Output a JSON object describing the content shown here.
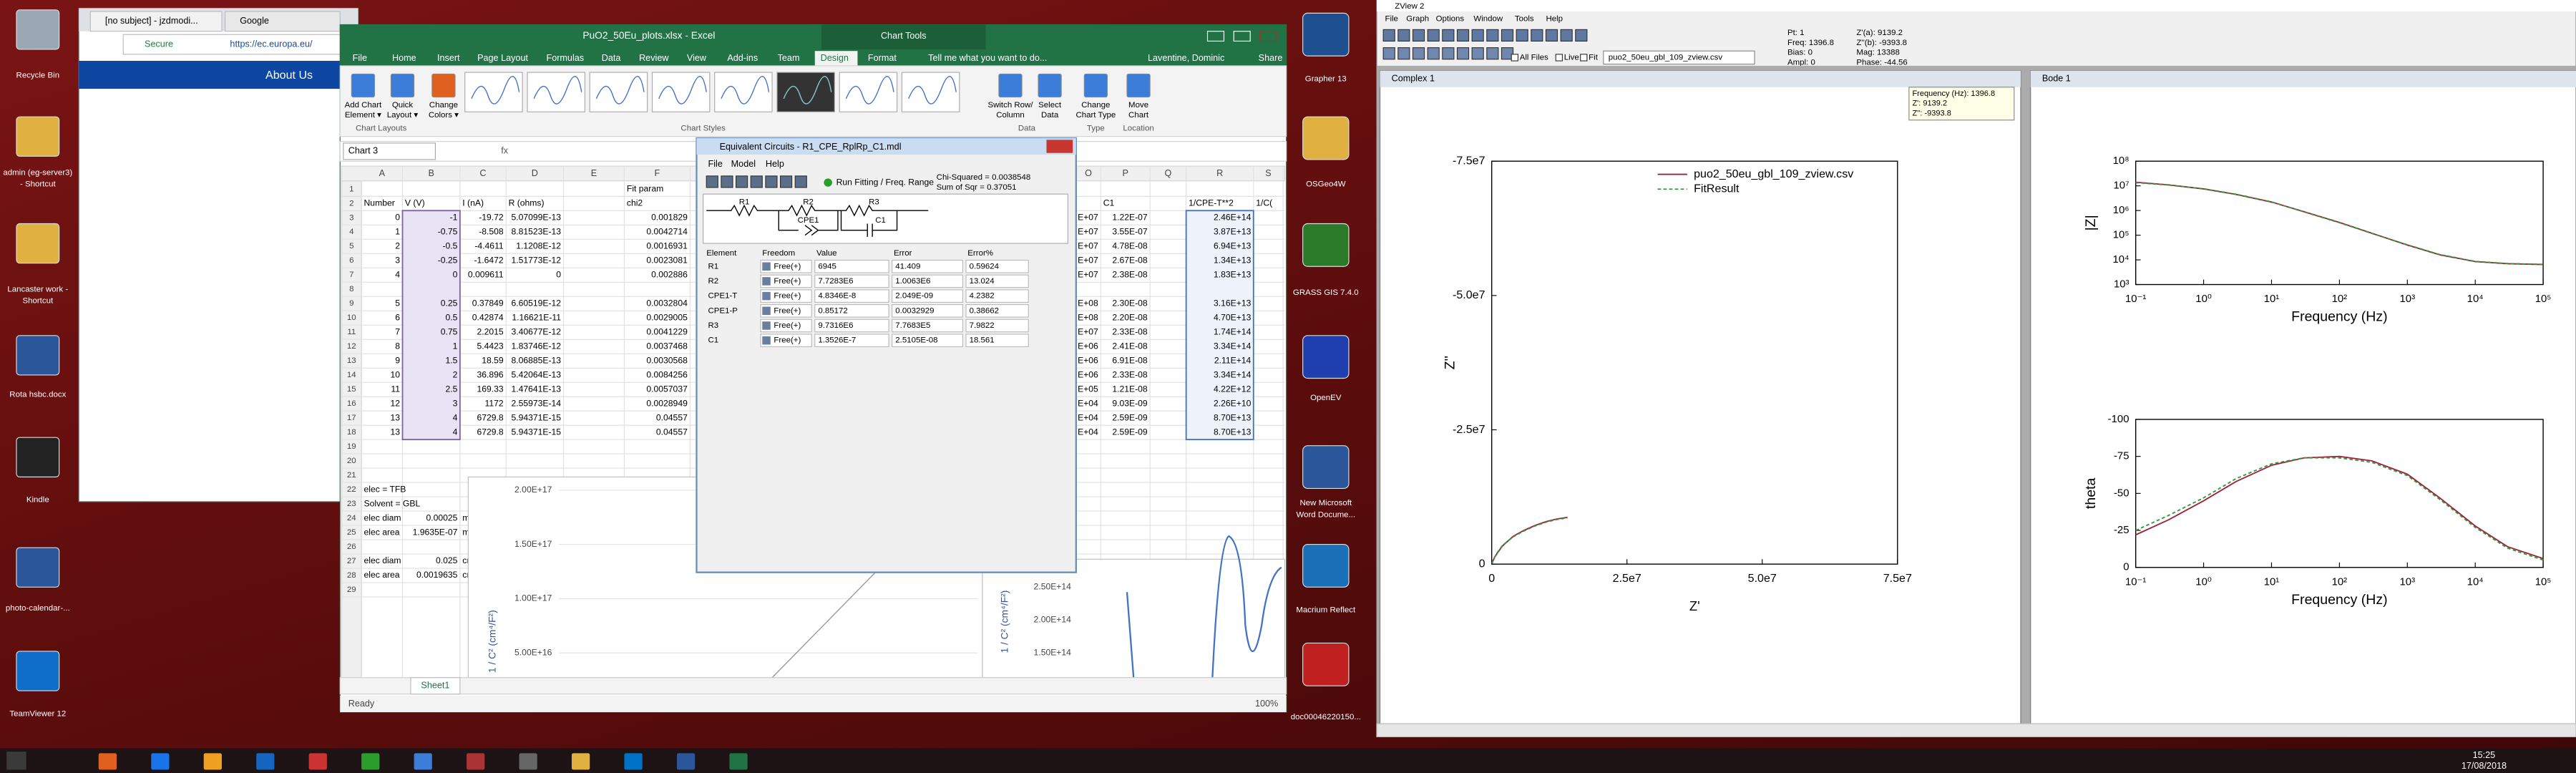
{
  "desktop": {
    "left_icons": [
      [
        "Recycle Bin"
      ],
      [
        "admin (eg-server3)",
        "- Shortcut"
      ],
      [
        "Lancaster work -",
        "Shortcut"
      ],
      [
        "Rota hsbc.docx"
      ],
      [
        "Kindle"
      ],
      [
        "photo-calendar-..."
      ],
      [
        "TeamViewer 12"
      ]
    ],
    "right_icons": [
      [
        "Grapher 13"
      ],
      [
        "OSGeo4W"
      ],
      [
        "GRASS GIS 7.4.0"
      ],
      [
        "OpenEV"
      ],
      [
        "New Microsoft",
        "Word Docume..."
      ],
      [
        "Macrium Reflect"
      ],
      [
        "doc00046220150..."
      ]
    ]
  },
  "browser": {
    "tabs": [
      "[no subject] - jzdmodi...",
      "Google"
    ],
    "secure": "Secure",
    "url": "https://ec.europa.eu/",
    "nav": "About Us"
  },
  "excel": {
    "title": "PuO2_50Eu_plots.xlsx - Excel",
    "context": "Chart Tools",
    "tabs": [
      "File",
      "Home",
      "Insert",
      "Page Layout",
      "Formulas",
      "Data",
      "Review",
      "View",
      "Add-ins",
      "Team",
      "Design",
      "Format"
    ],
    "tell_me": "Tell me what you want to do...",
    "user": "Laventine, Dominic",
    "share": "Share",
    "ribbon_buttons": [
      [
        "Add Chart",
        "Element ▾"
      ],
      [
        "Quick",
        "Layout ▾"
      ],
      [
        "Change",
        "Colors ▾"
      ],
      [
        "Switch Row/",
        "Column"
      ],
      [
        "Select",
        "Data"
      ],
      [
        "Change",
        "Chart Type"
      ],
      [
        "Move",
        "Chart"
      ]
    ],
    "groups": [
      "Chart Layouts",
      "Chart Styles",
      "Data",
      "Type",
      "Location"
    ],
    "name_box": "Chart 3",
    "fx": "fx",
    "columns": [
      "A",
      "B",
      "C",
      "D",
      "E",
      "F",
      "O",
      "P",
      "Q",
      "R",
      "S"
    ],
    "row_numbers": [
      1,
      2,
      3,
      4,
      5,
      6,
      7,
      8,
      9,
      10,
      11,
      12,
      13,
      14,
      15,
      16,
      17,
      18,
      19,
      20,
      21,
      22,
      23,
      24,
      25,
      26,
      27,
      28,
      29
    ],
    "rows": [
      [
        null,
        null,
        null,
        null,
        null,
        "Fit param",
        null,
        null,
        null,
        null,
        null
      ],
      [
        "Number",
        "V (V)",
        "I (nA)",
        "R (ohms)",
        null,
        "chi2",
        null,
        "C1",
        null,
        "1/CPE-T**2",
        "1/C("
      ],
      [
        "0",
        "-1",
        "-19.72",
        "5.07099E-13",
        null,
        "0.001829",
        "E+07",
        "1.22E-07",
        null,
        "2.46E+14",
        null
      ],
      [
        "1",
        "-0.75",
        "-8.508",
        "8.81523E-13",
        null,
        "0.0042714",
        "E+07",
        "3.55E-07",
        null,
        "3.87E+13",
        null
      ],
      [
        "2",
        "-0.5",
        "-4.4611",
        "1.1208E-12",
        null,
        "0.0016931",
        "E+07",
        "4.78E-08",
        null,
        "6.94E+13",
        null
      ],
      [
        "3",
        "-0.25",
        "-1.6472",
        "1.51773E-12",
        null,
        "0.0023081",
        "E+07",
        "2.67E-08",
        null,
        "1.34E+13",
        null
      ],
      [
        "4",
        "0",
        "0.009611",
        "0",
        null,
        "0.002886",
        "E+07",
        "2.38E-08",
        null,
        "1.83E+13",
        null
      ],
      [
        null,
        null,
        null,
        null,
        null,
        null,
        null,
        null,
        null,
        null,
        null
      ],
      [
        "5",
        "0.25",
        "0.37849",
        "6.60519E-12",
        null,
        "0.0032804",
        "E+08",
        "2.30E-08",
        null,
        "3.16E+13",
        null
      ],
      [
        "6",
        "0.5",
        "0.42874",
        "1.16621E-11",
        null,
        "0.0029005",
        "E+08",
        "2.20E-08",
        null,
        "4.70E+13",
        null
      ],
      [
        "7",
        "0.75",
        "2.2015",
        "3.40677E-12",
        null,
        "0.0041229",
        "E+07",
        "2.33E-08",
        null,
        "1.74E+14",
        null
      ],
      [
        "8",
        "1",
        "5.4423",
        "1.83746E-12",
        null,
        "0.0037468",
        "E+06",
        "2.41E-08",
        null,
        "3.34E+14",
        null
      ],
      [
        "9",
        "1.5",
        "18.59",
        "8.06885E-13",
        null,
        "0.0030568",
        "E+06",
        "6.91E-08",
        null,
        "2.11E+14",
        null
      ],
      [
        "10",
        "2",
        "36.896",
        "5.42064E-13",
        null,
        "0.0084256",
        "E+06",
        "2.33E-08",
        null,
        "3.34E+14",
        null
      ],
      [
        "11",
        "2.5",
        "169.33",
        "1.47641E-13",
        null,
        "0.0057037",
        "E+05",
        "1.21E-08",
        null,
        "4.22E+12",
        null
      ],
      [
        "12",
        "3",
        "1172",
        "2.55973E-14",
        null,
        "0.0028949",
        "E+04",
        "9.03E-09",
        null,
        "2.26E+10",
        null
      ],
      [
        "13",
        "4",
        "6729.8",
        "5.94371E-15",
        null,
        "0.04557",
        "E+04",
        "2.59E-09",
        null,
        "8.70E+13",
        null
      ],
      [
        "13",
        "4",
        "6729.8",
        "5.94371E-15",
        null,
        "0.04557",
        "E+04",
        "2.59E-09",
        null,
        "8.70E+13",
        null
      ],
      [
        null,
        null,
        null,
        null,
        null,
        null,
        null,
        null,
        null,
        null,
        null
      ],
      [
        null,
        null,
        null,
        null,
        null,
        null,
        null,
        null,
        null,
        null,
        null
      ],
      [
        null,
        null,
        null,
        null,
        null,
        null,
        null,
        null,
        null,
        null,
        null
      ],
      [
        "elec = TFB",
        null,
        null,
        null,
        null,
        null,
        null,
        null,
        null,
        null,
        null
      ],
      [
        "Solvent = GBL",
        null,
        null,
        null,
        null,
        null,
        null,
        null,
        null,
        null,
        null
      ],
      [
        "elec diam",
        "0.00025",
        "m2",
        null,
        null,
        null,
        null,
        null,
        null,
        null,
        null
      ],
      [
        "elec area",
        "1.9635E-07",
        "m2",
        null,
        null,
        null,
        null,
        null,
        null,
        null,
        null
      ],
      [
        null,
        null,
        null,
        null,
        null,
        null,
        null,
        null,
        null,
        null,
        null
      ],
      [
        "elec diam",
        "0.025",
        "cm",
        null,
        null,
        null,
        null,
        null,
        null,
        null,
        null
      ],
      [
        "elec area",
        "0.0019635",
        "cm",
        null,
        null,
        null,
        null,
        null,
        null,
        null,
        null
      ],
      [
        null,
        null,
        null,
        null,
        null,
        null,
        null,
        null,
        null,
        null,
        null
      ]
    ],
    "chart1_labels": [
      "2.00E+17",
      "1.50E+17",
      "1.00E+17",
      "5.00E+16"
    ],
    "chart2_labels": [
      "2.50E+14",
      "2.00E+14",
      "1.50E+14"
    ],
    "chart_y_title": "1 / C² (cm⁴/F²)",
    "sheet_tab": "Sheet1",
    "status": "Ready",
    "zoom": "100%"
  },
  "dialog": {
    "title": "Equivalent Circuits - R1_CPE_RplRp_C1.mdl",
    "menu": [
      "File",
      "Model",
      "Help"
    ],
    "run": "Run Fitting / Freq. Range",
    "chi": "Chi-Squared = 0.0038548",
    "sum": "Sum of Sqr = 0.37051",
    "circuit": [
      "R1",
      "R2",
      "CPE1",
      "R3",
      "C1"
    ],
    "headers": [
      "Element",
      "Freedom",
      "Value",
      "Error",
      "Error%"
    ],
    "rows": [
      [
        "R1",
        "Free(+)",
        "6945",
        "41.409",
        "0.59624"
      ],
      [
        "R2",
        "Free(+)",
        "7.7283E6",
        "1.0063E6",
        "13.024"
      ],
      [
        "CPE1-T",
        "Free(+)",
        "4.8346E-8",
        "2.049E-09",
        "4.2382"
      ],
      [
        "CPE1-P",
        "Free(+)",
        "0.85172",
        "0.0032929",
        "0.38662"
      ],
      [
        "R3",
        "Free(+)",
        "9.7316E6",
        "7.7683E5",
        "7.9822"
      ],
      [
        "C1",
        "Free(+)",
        "1.3526E-7",
        "2.5105E-08",
        "18.561"
      ]
    ]
  },
  "zview": {
    "title": "ZView 2",
    "menu": [
      "File",
      "Graph",
      "Options",
      "Window",
      "Tools",
      "Help"
    ],
    "all_files": "All Files",
    "live": "Live",
    "fit": "Fit",
    "file": "puo2_50eu_gbl_109_zview.csv",
    "status": [
      "Pt: 1",
      "Freq: 1396.8",
      "Bias: 0",
      "Ampl: 0"
    ],
    "status2": [
      "Z'(a): 9139.2",
      "Z''(b): -9393.8",
      "Mag: 13388",
      "Phase: -44.56"
    ],
    "windows": [
      "Complex 1",
      "Bode 1"
    ],
    "popup": [
      "Frequency (Hz): 1396.8",
      "Z': 9139.2",
      "Z'': -9393.8"
    ]
  },
  "chart_data": [
    {
      "type": "line",
      "x_label": "Z'",
      "y_label": "Z''",
      "xlim": [
        0,
        75000000
      ],
      "ylim": [
        0,
        -75000000
      ],
      "xticks": [
        0,
        {
          "value": 25000000,
          "label": "2.5e7"
        },
        {
          "value": 50000000,
          "label": "5.0e7"
        },
        {
          "value": 75000000,
          "label": "7.5e7"
        }
      ],
      "yticks": [
        0,
        {
          "value": -25000000,
          "label": "-2.5e7"
        },
        {
          "value": -50000000,
          "label": "-5.0e7"
        },
        {
          "value": -75000000,
          "label": "-7.5e7"
        }
      ],
      "x": [
        50000,
        200000,
        500000,
        1000000,
        2000000,
        4000000,
        6000000,
        8000000,
        10000000,
        12000000,
        14000000
      ],
      "series": [
        {
          "name": "puo2_50eu_gbl_109_zview.csv",
          "color": "#a0203a",
          "values": [
            -100000,
            -500000,
            -1200000,
            -2000000,
            -3400000,
            -5200000,
            -6300000,
            -7200000,
            -7900000,
            -8400000,
            -8700000
          ]
        },
        {
          "name": "FitResult",
          "color": "#2e9a3a",
          "dashed": true,
          "values": [
            -120000,
            -550000,
            -1250000,
            -2100000,
            -3500000,
            -5100000,
            -6200000,
            -7100000,
            -7800000,
            -8300000,
            -8600000
          ]
        }
      ],
      "legend": "top-right"
    },
    {
      "type": "line",
      "x_label": "Frequency (Hz)",
      "y_label": "|Z|",
      "log_x": true,
      "log_y": true,
      "xlim": [
        0.1,
        100000
      ],
      "ylim": [
        1000,
        100000000
      ],
      "xticks": [
        {
          "value": 0.1,
          "label": "10⁻¹"
        },
        {
          "value": 1,
          "label": "10⁰"
        },
        {
          "value": 10,
          "label": "10¹"
        },
        {
          "value": 100,
          "label": "10²"
        },
        {
          "value": 1000,
          "label": "10³"
        },
        {
          "value": 10000,
          "label": "10⁴"
        },
        {
          "value": 100000,
          "label": "10⁵"
        }
      ],
      "yticks": [
        {
          "value": 1000,
          "label": "10³"
        },
        {
          "value": 10000,
          "label": "10⁴"
        },
        {
          "value": 100000,
          "label": "10⁵"
        },
        {
          "value": 1000000,
          "label": "10⁶"
        },
        {
          "value": 10000000,
          "label": "10⁷"
        },
        {
          "value": 100000000,
          "label": "10⁸"
        }
      ],
      "x": [
        0.1,
        0.3,
        1,
        3,
        10,
        30,
        100,
        300,
        1000,
        3000,
        10000,
        30000,
        100000
      ],
      "series": [
        {
          "color": "#a0203a",
          "values": [
            14000000,
            11000000,
            7500000,
            4500000,
            2200000,
            900000,
            330000,
            120000,
            40000,
            16000,
            8500,
            7000,
            6500
          ]
        },
        {
          "color": "#2e9a3a",
          "dashed": true,
          "values": [
            13500000,
            10800000,
            7600000,
            4600000,
            2250000,
            880000,
            320000,
            118000,
            41000,
            16500,
            8700,
            7100,
            6600
          ]
        }
      ]
    },
    {
      "type": "line",
      "x_label": "Frequency (Hz)",
      "y_label": "theta",
      "log_x": true,
      "xlim": [
        0.1,
        100000
      ],
      "ylim": [
        0,
        -100
      ],
      "xticks": [
        {
          "value": 0.1,
          "label": "10⁻¹"
        },
        {
          "value": 1,
          "label": "10⁰"
        },
        {
          "value": 10,
          "label": "10¹"
        },
        {
          "value": 100,
          "label": "10²"
        },
        {
          "value": 1000,
          "label": "10³"
        },
        {
          "value": 10000,
          "label": "10⁴"
        },
        {
          "value": 100000,
          "label": "10⁵"
        }
      ],
      "yticks": [
        0,
        -25,
        -50,
        -75,
        -100
      ],
      "x": [
        0.1,
        0.3,
        1,
        3,
        10,
        30,
        100,
        300,
        1000,
        3000,
        10000,
        30000,
        100000
      ],
      "series": [
        {
          "color": "#a0203a",
          "values": [
            -22,
            -32,
            -45,
            -58,
            -69,
            -74,
            -75,
            -72,
            -63,
            -47,
            -28,
            -14,
            -6
          ]
        },
        {
          "color": "#2e9a3a",
          "dashed": true,
          "values": [
            -25,
            -35,
            -47,
            -60,
            -70,
            -74,
            -74,
            -71,
            -62,
            -46,
            -27,
            -13,
            -5
          ]
        }
      ]
    }
  ],
  "taskbar": {
    "time": "15:25",
    "date": "17/08/2018"
  }
}
